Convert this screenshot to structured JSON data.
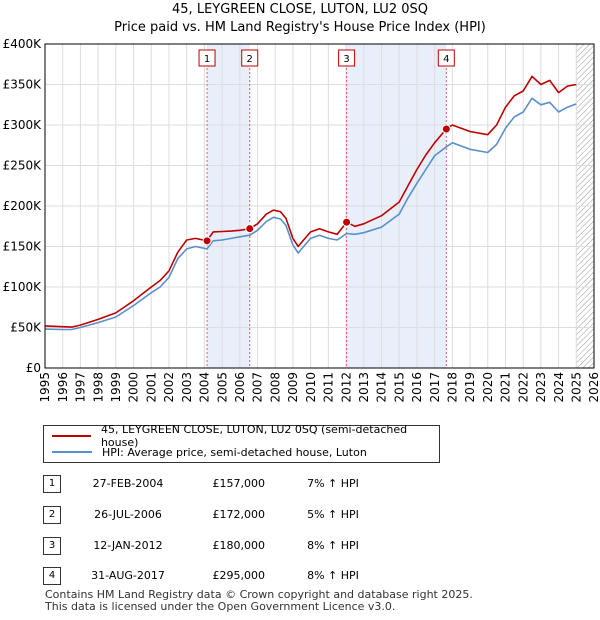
{
  "chart_data": {
    "type": "line",
    "title": "45, LEYGREEN CLOSE, LUTON, LU2 0SQ",
    "subtitle": "Price paid vs. HM Land Registry's House Price Index (HPI)",
    "ylim": [
      0,
      400000
    ],
    "xlim": [
      1995,
      2026
    ],
    "yticks": [
      {
        "v": 0,
        "label": "£0"
      },
      {
        "v": 50000,
        "label": "£50K"
      },
      {
        "v": 100000,
        "label": "£100K"
      },
      {
        "v": 150000,
        "label": "£150K"
      },
      {
        "v": 200000,
        "label": "£200K"
      },
      {
        "v": 250000,
        "label": "£250K"
      },
      {
        "v": 300000,
        "label": "£300K"
      },
      {
        "v": 350000,
        "label": "£350K"
      },
      {
        "v": 400000,
        "label": "£400K"
      }
    ],
    "xticks": [
      "1995",
      "1996",
      "1997",
      "1998",
      "1999",
      "2000",
      "2001",
      "2002",
      "2003",
      "2004",
      "2005",
      "2006",
      "2007",
      "2008",
      "2009",
      "2010",
      "2011",
      "2012",
      "2013",
      "2014",
      "2015",
      "2016",
      "2017",
      "2018",
      "2019",
      "2020",
      "2021",
      "2022",
      "2023",
      "2024",
      "2025",
      "2026"
    ],
    "series": [
      {
        "name": "45, LEYGREEN CLOSE, LUTON, LU2 0SQ (semi-detached house)",
        "color": "#c00000",
        "points": [
          [
            1995.0,
            52000
          ],
          [
            1996.0,
            51000
          ],
          [
            1996.5,
            50500
          ],
          [
            1997.0,
            53000
          ],
          [
            1998.0,
            60000
          ],
          [
            1999.0,
            68000
          ],
          [
            2000.0,
            83000
          ],
          [
            2001.0,
            100000
          ],
          [
            2001.5,
            108000
          ],
          [
            2002.0,
            120000
          ],
          [
            2002.5,
            143000
          ],
          [
            2003.0,
            158000
          ],
          [
            2003.5,
            160000
          ],
          [
            2004.15,
            157000
          ],
          [
            2004.5,
            168000
          ],
          [
            2005.0,
            168500
          ],
          [
            2005.5,
            169000
          ],
          [
            2006.0,
            170000
          ],
          [
            2006.56,
            172000
          ],
          [
            2007.0,
            178000
          ],
          [
            2007.5,
            190000
          ],
          [
            2007.9,
            195000
          ],
          [
            2008.3,
            193000
          ],
          [
            2008.6,
            185000
          ],
          [
            2009.0,
            160000
          ],
          [
            2009.3,
            150000
          ],
          [
            2009.6,
            158000
          ],
          [
            2010.0,
            168000
          ],
          [
            2010.5,
            172000
          ],
          [
            2011.0,
            168000
          ],
          [
            2011.5,
            165000
          ],
          [
            2012.03,
            180000
          ],
          [
            2012.5,
            175000
          ],
          [
            2013.0,
            178000
          ],
          [
            2014.0,
            188000
          ],
          [
            2015.0,
            205000
          ],
          [
            2015.5,
            225000
          ],
          [
            2016.0,
            245000
          ],
          [
            2016.5,
            263000
          ],
          [
            2017.0,
            278000
          ],
          [
            2017.66,
            295000
          ],
          [
            2018.0,
            300000
          ],
          [
            2019.0,
            292000
          ],
          [
            2020.0,
            288000
          ],
          [
            2020.5,
            300000
          ],
          [
            2021.0,
            322000
          ],
          [
            2021.5,
            336000
          ],
          [
            2022.0,
            342000
          ],
          [
            2022.5,
            360000
          ],
          [
            2023.0,
            350000
          ],
          [
            2023.5,
            355000
          ],
          [
            2024.0,
            340000
          ],
          [
            2024.5,
            348000
          ],
          [
            2025.0,
            350000
          ]
        ]
      },
      {
        "name": "HPI: Average price, semi-detached house, Luton",
        "color": "#5a8fcc",
        "points": [
          [
            1995.0,
            48000
          ],
          [
            1996.0,
            47500
          ],
          [
            1996.5,
            47500
          ],
          [
            1997.0,
            50000
          ],
          [
            1998.0,
            56000
          ],
          [
            1999.0,
            63000
          ],
          [
            2000.0,
            77000
          ],
          [
            2001.0,
            93000
          ],
          [
            2001.5,
            100000
          ],
          [
            2002.0,
            112000
          ],
          [
            2002.5,
            135000
          ],
          [
            2003.0,
            147000
          ],
          [
            2003.5,
            150000
          ],
          [
            2004.15,
            147000
          ],
          [
            2004.5,
            157000
          ],
          [
            2005.0,
            158000
          ],
          [
            2005.5,
            160000
          ],
          [
            2006.0,
            162000
          ],
          [
            2006.56,
            164000
          ],
          [
            2007.0,
            170000
          ],
          [
            2007.5,
            181000
          ],
          [
            2007.9,
            186000
          ],
          [
            2008.3,
            184000
          ],
          [
            2008.6,
            176000
          ],
          [
            2009.0,
            152000
          ],
          [
            2009.3,
            142000
          ],
          [
            2009.6,
            150000
          ],
          [
            2010.0,
            160000
          ],
          [
            2010.5,
            164000
          ],
          [
            2011.0,
            160000
          ],
          [
            2011.5,
            158000
          ],
          [
            2012.03,
            166000
          ],
          [
            2012.5,
            165000
          ],
          [
            2013.0,
            167000
          ],
          [
            2014.0,
            174000
          ],
          [
            2015.0,
            190000
          ],
          [
            2015.5,
            210000
          ],
          [
            2016.0,
            228000
          ],
          [
            2016.5,
            245000
          ],
          [
            2017.0,
            262000
          ],
          [
            2017.66,
            273000
          ],
          [
            2018.0,
            278000
          ],
          [
            2019.0,
            270000
          ],
          [
            2020.0,
            266000
          ],
          [
            2020.5,
            276000
          ],
          [
            2021.0,
            296000
          ],
          [
            2021.5,
            310000
          ],
          [
            2022.0,
            316000
          ],
          [
            2022.5,
            333000
          ],
          [
            2023.0,
            325000
          ],
          [
            2023.5,
            328000
          ],
          [
            2024.0,
            316000
          ],
          [
            2024.5,
            322000
          ],
          [
            2025.0,
            326000
          ]
        ]
      }
    ],
    "sales": [
      {
        "n": "1",
        "x": 2004.15,
        "y": 157000
      },
      {
        "n": "2",
        "x": 2006.56,
        "y": 172000
      },
      {
        "n": "3",
        "x": 2012.03,
        "y": 180000
      },
      {
        "n": "4",
        "x": 2017.66,
        "y": 295000
      }
    ],
    "shaded_periods": [
      [
        2004.15,
        2006.56
      ],
      [
        2012.03,
        2017.66
      ]
    ],
    "forecast_start": 2025.0
  },
  "legend": {
    "property_label": "45, LEYGREEN CLOSE, LUTON, LU2 0SQ (semi-detached house)",
    "hpi_label": "HPI: Average price, semi-detached house, Luton"
  },
  "table": [
    {
      "num": "1",
      "date": "27-FEB-2004",
      "price": "£157,000",
      "hpi": "7% ↑ HPI"
    },
    {
      "num": "2",
      "date": "26-JUL-2006",
      "price": "£172,000",
      "hpi": "5% ↑ HPI"
    },
    {
      "num": "3",
      "date": "12-JAN-2012",
      "price": "£180,000",
      "hpi": "8% ↑ HPI"
    },
    {
      "num": "4",
      "date": "31-AUG-2017",
      "price": "£295,000",
      "hpi": "8% ↑ HPI"
    }
  ],
  "footer": {
    "line1": "Contains HM Land Registry data © Crown copyright and database right 2025.",
    "line2": "This data is licensed under the Open Government Licence v3.0."
  }
}
